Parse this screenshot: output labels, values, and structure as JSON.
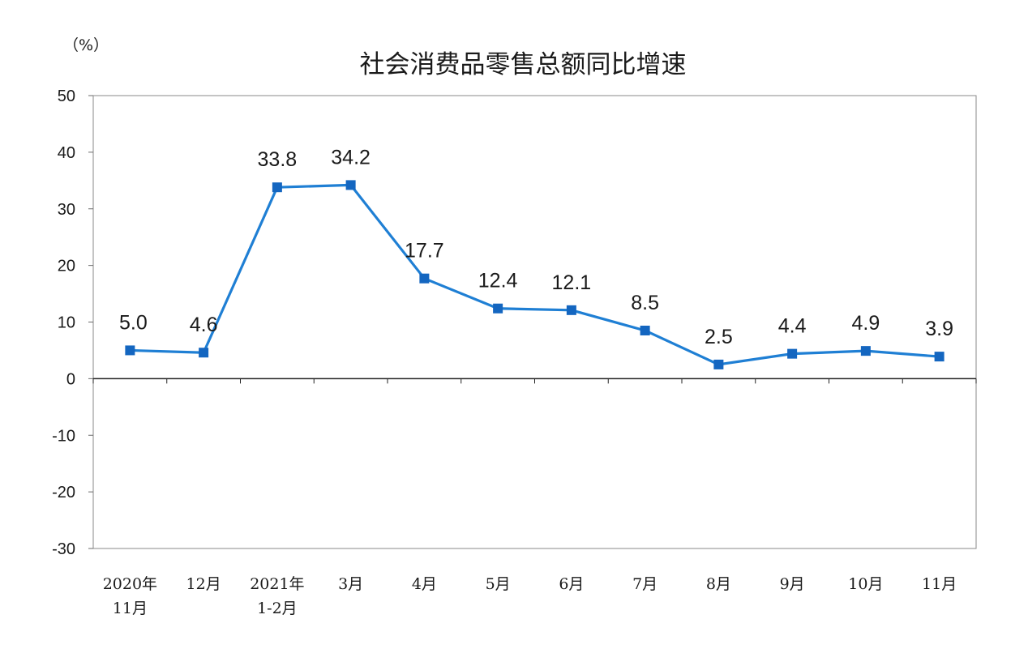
{
  "chart_data": {
    "type": "line",
    "title": "社会消费品零售总额同比增速",
    "unit_label": "（%）",
    "categories": [
      [
        "2020年",
        "11月"
      ],
      [
        "12月"
      ],
      [
        "2021年",
        "1-2月"
      ],
      [
        "3月"
      ],
      [
        "4月"
      ],
      [
        "5月"
      ],
      [
        "6月"
      ],
      [
        "7月"
      ],
      [
        "8月"
      ],
      [
        "9月"
      ],
      [
        "10月"
      ],
      [
        "11月"
      ]
    ],
    "values": [
      5.0,
      4.6,
      33.8,
      34.2,
      17.7,
      12.4,
      12.1,
      8.5,
      2.5,
      4.4,
      4.9,
      3.9
    ],
    "data_labels": [
      "5.0",
      "4.6",
      "33.8",
      "34.2",
      "17.7",
      "12.4",
      "12.1",
      "8.5",
      "2.5",
      "4.4",
      "4.9",
      "3.9"
    ],
    "ylim": [
      -30,
      50
    ],
    "yticks": [
      50,
      40,
      30,
      20,
      10,
      0,
      -10,
      -20,
      -30
    ],
    "ytick_labels": [
      "50",
      "40",
      "30",
      "20",
      "10",
      "0",
      "-10",
      "-20",
      "-30"
    ],
    "grid": false,
    "line_color": "#1f7fd4",
    "marker_color": "#1466c0"
  }
}
